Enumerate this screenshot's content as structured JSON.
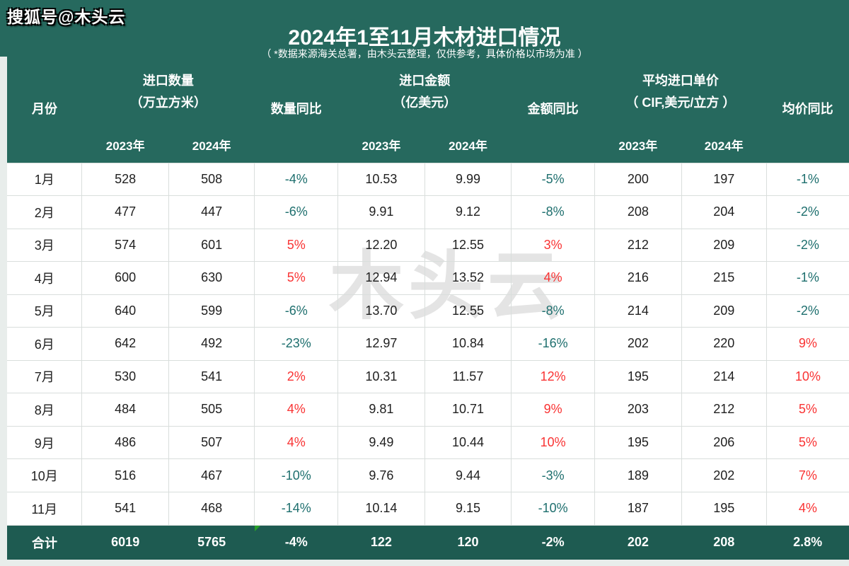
{
  "page": {
    "brand": "搜狐号@木头云",
    "title": "2024年1至11月木材进口情况",
    "subtitle": "（ *数据来源海关总署，由木头云整理，仅供参考，具体价格以市场为准 ）",
    "watermark": "木头云"
  },
  "colors": {
    "header_green": "#26695e",
    "total_row_green": "#1e5b51",
    "negative_pct": "#1e6f6e",
    "positive_pct": "#f93333"
  },
  "table": {
    "group_headers": {
      "month": "月份",
      "quantity": "进口数量\n（万立方米）",
      "quantity_yoy": "数量同比",
      "amount": "进口金额\n（亿美元）",
      "amount_yoy": "金额同比",
      "price": "平均进口单价\n（ CIF,美元/立方 ）",
      "price_yoy": "均价同比"
    },
    "year_headers": [
      "2023年",
      "2024年"
    ],
    "rows": [
      [
        "1月",
        "528",
        "508",
        "-4%",
        "10.53",
        "9.99",
        "-5%",
        "200",
        "197",
        "-1%"
      ],
      [
        "2月",
        "477",
        "447",
        "-6%",
        "9.91",
        "9.12",
        "-8%",
        "208",
        "204",
        "-2%"
      ],
      [
        "3月",
        "574",
        "601",
        "5%",
        "12.20",
        "12.55",
        "3%",
        "212",
        "209",
        "-2%"
      ],
      [
        "4月",
        "600",
        "630",
        "5%",
        "12.94",
        "13.52",
        "4%",
        "216",
        "215",
        "-1%"
      ],
      [
        "5月",
        "640",
        "599",
        "-6%",
        "13.70",
        "12.55",
        "-8%",
        "214",
        "209",
        "-2%"
      ],
      [
        "6月",
        "642",
        "492",
        "-23%",
        "12.97",
        "10.84",
        "-16%",
        "202",
        "220",
        "9%"
      ],
      [
        "7月",
        "530",
        "541",
        "2%",
        "10.31",
        "11.57",
        "12%",
        "195",
        "214",
        "10%"
      ],
      [
        "8月",
        "484",
        "505",
        "4%",
        "9.81",
        "10.71",
        "9%",
        "203",
        "212",
        "5%"
      ],
      [
        "9月",
        "486",
        "507",
        "4%",
        "9.49",
        "10.44",
        "10%",
        "195",
        "206",
        "5%"
      ],
      [
        "10月",
        "516",
        "467",
        "-10%",
        "9.76",
        "9.44",
        "-3%",
        "189",
        "202",
        "7%"
      ],
      [
        "11月",
        "541",
        "468",
        "-14%",
        "10.14",
        "9.15",
        "-10%",
        "187",
        "195",
        "4%"
      ]
    ],
    "total_row": [
      "合计",
      "6019",
      "5765",
      "-4%",
      "122",
      "120",
      "-2%",
      "202",
      "208",
      "2.8%"
    ]
  }
}
